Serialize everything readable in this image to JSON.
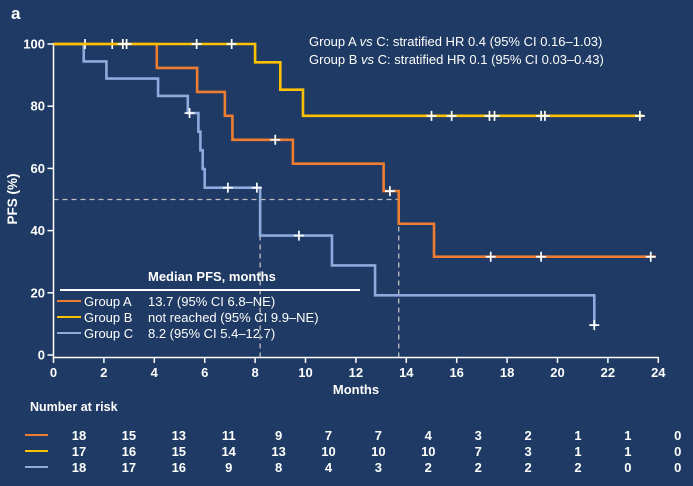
{
  "figure_label": "a",
  "colors": {
    "background": "#1F3A64",
    "axis": "#FFFFFF",
    "guide": "#BFBFBF",
    "group_a": "#ED7D31",
    "group_b": "#FFC000",
    "group_c": "#8FAADC"
  },
  "annotations": {
    "line1": {
      "pre": "Group A ",
      "italic": "vs",
      "post": " C: stratified HR 0.4 (95% CI 0.16–1.03)"
    },
    "line2": {
      "pre": "Group B ",
      "italic": "vs",
      "post": " C: stratified HR 0.1 (95% CI 0.03–0.43)"
    }
  },
  "legend": {
    "title": "Median PFS, months",
    "rows": [
      {
        "name": "Group A",
        "value": "13.7 (95% CI 6.8–NE)",
        "color": "#ED7D31"
      },
      {
        "name": "Group B",
        "value": "not reached (95% CI 9.9–NE)",
        "color": "#FFC000"
      },
      {
        "name": "Group C",
        "value": "8.2 (95% CI 5.4–12.7)",
        "color": "#8FAADC"
      }
    ]
  },
  "chart_data": {
    "type": "line",
    "subtype": "kaplan-meier-step",
    "title": "",
    "xlabel": "Months",
    "ylabel": "PFS (%)",
    "xlim": [
      0,
      24
    ],
    "ylim": [
      0,
      100
    ],
    "x_ticks": [
      0,
      2,
      4,
      6,
      8,
      10,
      12,
      14,
      16,
      18,
      20,
      22,
      24
    ],
    "y_ticks": [
      0,
      20,
      40,
      60,
      80,
      100
    ],
    "grid": false,
    "median_guides": {
      "y_percent": 50,
      "x_months": [
        8.2,
        13.7
      ]
    },
    "series": [
      {
        "name": "Group A",
        "color": "#ED7D31",
        "end": 23.9,
        "steps": [
          [
            0,
            100
          ],
          [
            4.1,
            92.3
          ],
          [
            5.7,
            84.6
          ],
          [
            6.8,
            76.9
          ],
          [
            7.1,
            69.2
          ],
          [
            9.5,
            61.5
          ],
          [
            13.1,
            52.7
          ],
          [
            13.7,
            42.2
          ],
          [
            15.1,
            31.6
          ]
        ],
        "censors": [
          [
            1.25,
            100
          ],
          [
            2.33,
            100
          ],
          [
            8.8,
            69.2
          ],
          [
            13.35,
            52.7
          ],
          [
            17.35,
            31.6
          ],
          [
            19.35,
            31.6
          ],
          [
            23.7,
            31.6
          ]
        ]
      },
      {
        "name": "Group B",
        "color": "#FFC000",
        "end": 23.4,
        "steps": [
          [
            0,
            100
          ],
          [
            8.0,
            94.1
          ],
          [
            9.0,
            85.3
          ],
          [
            9.9,
            76.9
          ]
        ],
        "censors": [
          [
            2.75,
            100
          ],
          [
            2.9,
            100
          ],
          [
            5.68,
            100
          ],
          [
            7.07,
            100
          ],
          [
            15.0,
            76.9
          ],
          [
            15.8,
            76.9
          ],
          [
            17.3,
            76.9
          ],
          [
            17.5,
            76.9
          ],
          [
            19.35,
            76.9
          ],
          [
            19.5,
            76.9
          ],
          [
            23.27,
            76.9
          ]
        ]
      },
      {
        "name": "Group C",
        "color": "#8FAADC",
        "end": 21.5,
        "steps": [
          [
            0,
            100
          ],
          [
            1.2,
            94.4
          ],
          [
            2.1,
            88.9
          ],
          [
            4.15,
            83.3
          ],
          [
            5.33,
            77.8
          ],
          [
            5.75,
            71.8
          ],
          [
            5.83,
            65.8
          ],
          [
            5.92,
            59.8
          ],
          [
            6.0,
            53.8
          ],
          [
            8.2,
            38.4
          ],
          [
            11.05,
            28.8
          ],
          [
            12.76,
            19.2
          ],
          [
            21.46,
            9.6
          ]
        ],
        "censors": [
          [
            5.4,
            77.8
          ],
          [
            6.92,
            53.8
          ],
          [
            8.07,
            53.8
          ],
          [
            9.74,
            38.4
          ],
          [
            21.46,
            9.6
          ]
        ]
      }
    ]
  },
  "risk_table": {
    "label": "Number at risk",
    "months": [
      0,
      2,
      4,
      6,
      8,
      10,
      12,
      14,
      16,
      18,
      20,
      22,
      24
    ],
    "rows": [
      {
        "name": "Group A",
        "color": "#ED7D31",
        "counts": [
          18,
          15,
          13,
          11,
          9,
          7,
          7,
          4,
          3,
          2,
          1,
          1,
          0
        ]
      },
      {
        "name": "Group B",
        "color": "#FFC000",
        "counts": [
          17,
          16,
          15,
          14,
          13,
          10,
          10,
          10,
          7,
          3,
          1,
          1,
          0
        ]
      },
      {
        "name": "Group C",
        "color": "#8FAADC",
        "counts": [
          18,
          17,
          16,
          9,
          8,
          4,
          3,
          2,
          2,
          2,
          2,
          0,
          0
        ]
      }
    ]
  }
}
